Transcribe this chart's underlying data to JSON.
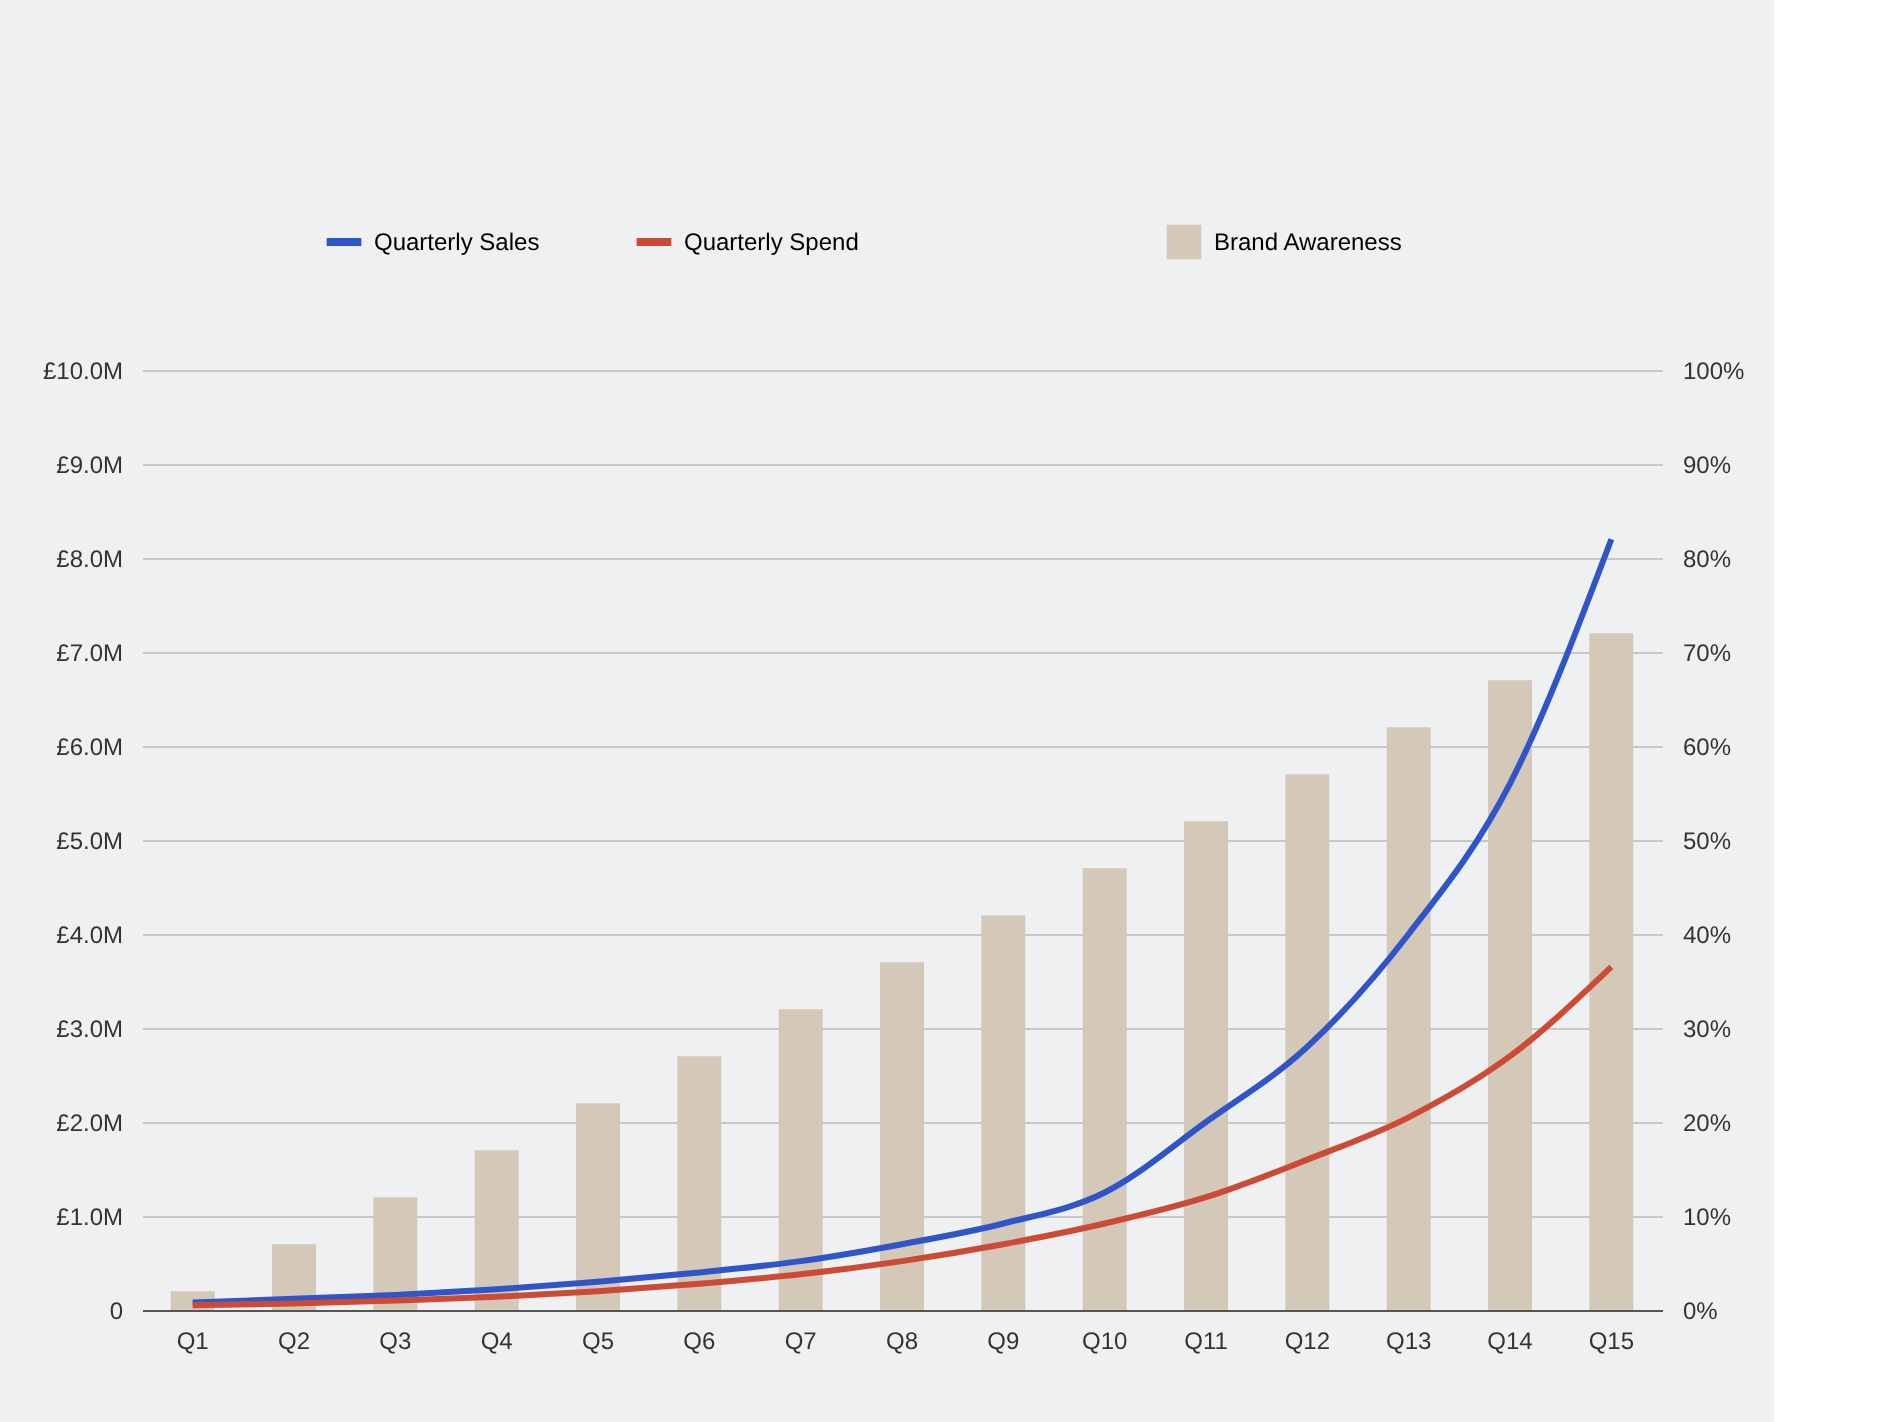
{
  "chart_data": {
    "type": "line",
    "categories": [
      "Q1",
      "Q2",
      "Q3",
      "Q4",
      "Q5",
      "Q6",
      "Q7",
      "Q8",
      "Q9",
      "Q10",
      "Q11",
      "Q12",
      "Q13",
      "Q14",
      "Q15"
    ],
    "series": [
      {
        "name": "Quarterly Sales",
        "color": "#2f55c8",
        "values": [
          0.08,
          0.12,
          0.16,
          0.22,
          0.3,
          0.4,
          0.52,
          0.7,
          0.92,
          1.25,
          2.0,
          2.8,
          4.0,
          5.6,
          8.2
        ]
      },
      {
        "name": "Quarterly Spend",
        "color": "#cc4b37",
        "values": [
          0.05,
          0.07,
          0.1,
          0.14,
          0.2,
          0.28,
          0.38,
          0.52,
          0.7,
          0.92,
          1.2,
          1.6,
          2.05,
          2.7,
          3.65
        ]
      },
      {
        "name": "Brand Awareness",
        "type": "bar",
        "axis": "y2",
        "color": "#d4c8b8",
        "values": [
          2,
          7,
          12,
          17,
          22,
          27,
          32,
          37,
          42,
          47,
          52,
          57,
          62,
          67,
          72
        ]
      }
    ],
    "ylim": [
      0,
      10
    ],
    "yticks": [
      {
        "value": 0,
        "label": "0"
      },
      {
        "value": 1,
        "label": "£1.0M"
      },
      {
        "value": 2,
        "label": "£2.0M"
      },
      {
        "value": 3,
        "label": "£3.0M"
      },
      {
        "value": 4,
        "label": "£4.0M"
      },
      {
        "value": 5,
        "label": "£5.0M"
      },
      {
        "value": 6,
        "label": "£6.0M"
      },
      {
        "value": 7,
        "label": "£7.0M"
      },
      {
        "value": 8,
        "label": "£8.0M"
      },
      {
        "value": 9,
        "label": "£9.0M"
      },
      {
        "value": 10,
        "label": "£10.0M"
      }
    ],
    "y2lim": [
      0,
      100
    ],
    "y2ticks": [
      {
        "value": 0,
        "label": "0%"
      },
      {
        "value": 10,
        "label": "10%"
      },
      {
        "value": 20,
        "label": "20%"
      },
      {
        "value": 30,
        "label": "30%"
      },
      {
        "value": 40,
        "label": "40%"
      },
      {
        "value": 50,
        "label": "50%"
      },
      {
        "value": 60,
        "label": "60%"
      },
      {
        "value": 70,
        "label": "70%"
      },
      {
        "value": 80,
        "label": "80%"
      },
      {
        "value": 90,
        "label": "90%"
      },
      {
        "value": 100,
        "label": "100%"
      }
    ],
    "grid": "y",
    "legend": "top",
    "marker": "none",
    "line_style": "solid"
  }
}
